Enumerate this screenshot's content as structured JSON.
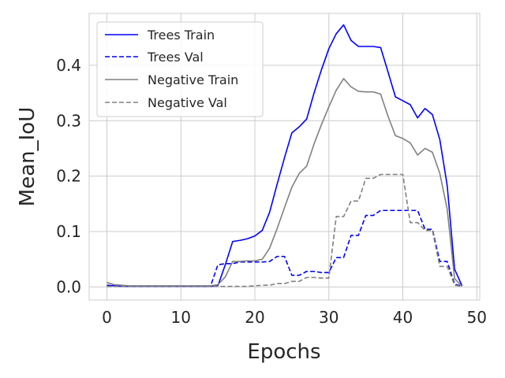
{
  "chart_data": {
    "type": "line",
    "title": "",
    "xlabel": "Epochs",
    "ylabel": "Mean_IoU",
    "xlim": [
      -2.4,
      50.4
    ],
    "ylim": [
      -0.0237,
      0.4937
    ],
    "xticks": [
      0,
      10,
      20,
      30,
      40,
      50
    ],
    "yticks": [
      0.0,
      0.1,
      0.2,
      0.3,
      0.4
    ],
    "xtick_labels": [
      "0",
      "10",
      "20",
      "30",
      "40",
      "50"
    ],
    "ytick_labels": [
      "0.0",
      "0.1",
      "0.2",
      "0.3",
      "0.4"
    ],
    "grid": true,
    "legend_position": "top-left",
    "series": [
      {
        "name": "Trees Train",
        "color": "#0000ff",
        "dash": "solid",
        "x": [
          0,
          1,
          2,
          3,
          4,
          5,
          6,
          7,
          8,
          9,
          10,
          11,
          12,
          13,
          14,
          15,
          16,
          17,
          18,
          19,
          20,
          21,
          22,
          23,
          24,
          25,
          26,
          27,
          28,
          29,
          30,
          31,
          32,
          33,
          34,
          35,
          36,
          37,
          38,
          39,
          40,
          41,
          42,
          43,
          44,
          45,
          46,
          47,
          48
        ],
        "y": [
          0.003,
          0.002,
          0.001,
          0.001,
          0.001,
          0.001,
          0.001,
          0.001,
          0.001,
          0.001,
          0.001,
          0.001,
          0.001,
          0.001,
          0.001,
          0.002,
          0.04,
          0.082,
          0.084,
          0.087,
          0.092,
          0.102,
          0.135,
          0.185,
          0.233,
          0.278,
          0.289,
          0.303,
          0.35,
          0.392,
          0.43,
          0.457,
          0.473,
          0.445,
          0.434,
          0.434,
          0.434,
          0.432,
          0.388,
          0.343,
          0.336,
          0.329,
          0.305,
          0.322,
          0.311,
          0.266,
          0.183,
          0.032,
          0.002
        ]
      },
      {
        "name": "Trees Val",
        "color": "#0000ff",
        "dash": "dashed",
        "x": [
          0,
          1,
          2,
          3,
          4,
          5,
          6,
          7,
          8,
          9,
          10,
          11,
          12,
          13,
          14,
          15,
          16,
          17,
          18,
          19,
          20,
          21,
          22,
          23,
          24,
          25,
          26,
          27,
          28,
          29,
          30,
          31,
          32,
          33,
          34,
          35,
          36,
          37,
          38,
          39,
          40,
          41,
          42,
          43,
          44,
          45,
          46,
          47,
          48
        ],
        "y": [
          0.001,
          0.001,
          0.001,
          0.001,
          0.001,
          0.001,
          0.001,
          0.001,
          0.001,
          0.001,
          0.001,
          0.001,
          0.001,
          0.001,
          0.001,
          0.04,
          0.042,
          0.042,
          0.045,
          0.045,
          0.045,
          0.045,
          0.046,
          0.055,
          0.055,
          0.021,
          0.021,
          0.028,
          0.028,
          0.026,
          0.026,
          0.053,
          0.053,
          0.093,
          0.093,
          0.129,
          0.129,
          0.138,
          0.138,
          0.138,
          0.138,
          0.138,
          0.138,
          0.104,
          0.104,
          0.046,
          0.046,
          0.005,
          0.001
        ]
      },
      {
        "name": "Negative Train",
        "color": "#808080",
        "dash": "solid",
        "x": [
          0,
          1,
          2,
          3,
          4,
          5,
          6,
          7,
          8,
          9,
          10,
          11,
          12,
          13,
          14,
          15,
          16,
          17,
          18,
          19,
          20,
          21,
          22,
          23,
          24,
          25,
          26,
          27,
          28,
          29,
          30,
          31,
          32,
          33,
          34,
          35,
          36,
          37,
          38,
          39,
          40,
          41,
          42,
          43,
          44,
          45,
          46,
          47,
          48
        ],
        "y": [
          0.008,
          0.004,
          0.003,
          0.002,
          0.002,
          0.002,
          0.002,
          0.002,
          0.002,
          0.002,
          0.002,
          0.002,
          0.002,
          0.002,
          0.002,
          0.004,
          0.018,
          0.046,
          0.046,
          0.047,
          0.047,
          0.05,
          0.07,
          0.105,
          0.143,
          0.18,
          0.205,
          0.218,
          0.258,
          0.293,
          0.325,
          0.355,
          0.376,
          0.361,
          0.353,
          0.352,
          0.352,
          0.348,
          0.308,
          0.273,
          0.268,
          0.26,
          0.238,
          0.25,
          0.243,
          0.205,
          0.14,
          0.015,
          0.001
        ]
      },
      {
        "name": "Negative Val",
        "color": "#808080",
        "dash": "dashed",
        "x": [
          0,
          1,
          2,
          3,
          4,
          5,
          6,
          7,
          8,
          9,
          10,
          11,
          12,
          13,
          14,
          15,
          16,
          17,
          18,
          19,
          20,
          21,
          22,
          23,
          24,
          25,
          26,
          27,
          28,
          29,
          30,
          31,
          32,
          33,
          34,
          35,
          36,
          37,
          38,
          39,
          40,
          41,
          42,
          43,
          44,
          45,
          46,
          47,
          48
        ],
        "y": [
          0.001,
          0.001,
          0.001,
          0.001,
          0.001,
          0.001,
          0.001,
          0.001,
          0.001,
          0.001,
          0.001,
          0.001,
          0.001,
          0.001,
          0.001,
          0.001,
          0.001,
          0.001,
          0.001,
          0.001,
          0.002,
          0.003,
          0.003,
          0.006,
          0.006,
          0.01,
          0.01,
          0.017,
          0.017,
          0.016,
          0.016,
          0.127,
          0.127,
          0.155,
          0.155,
          0.196,
          0.196,
          0.203,
          0.203,
          0.203,
          0.203,
          0.116,
          0.116,
          0.102,
          0.102,
          0.037,
          0.037,
          0.003,
          0.001
        ]
      }
    ]
  }
}
